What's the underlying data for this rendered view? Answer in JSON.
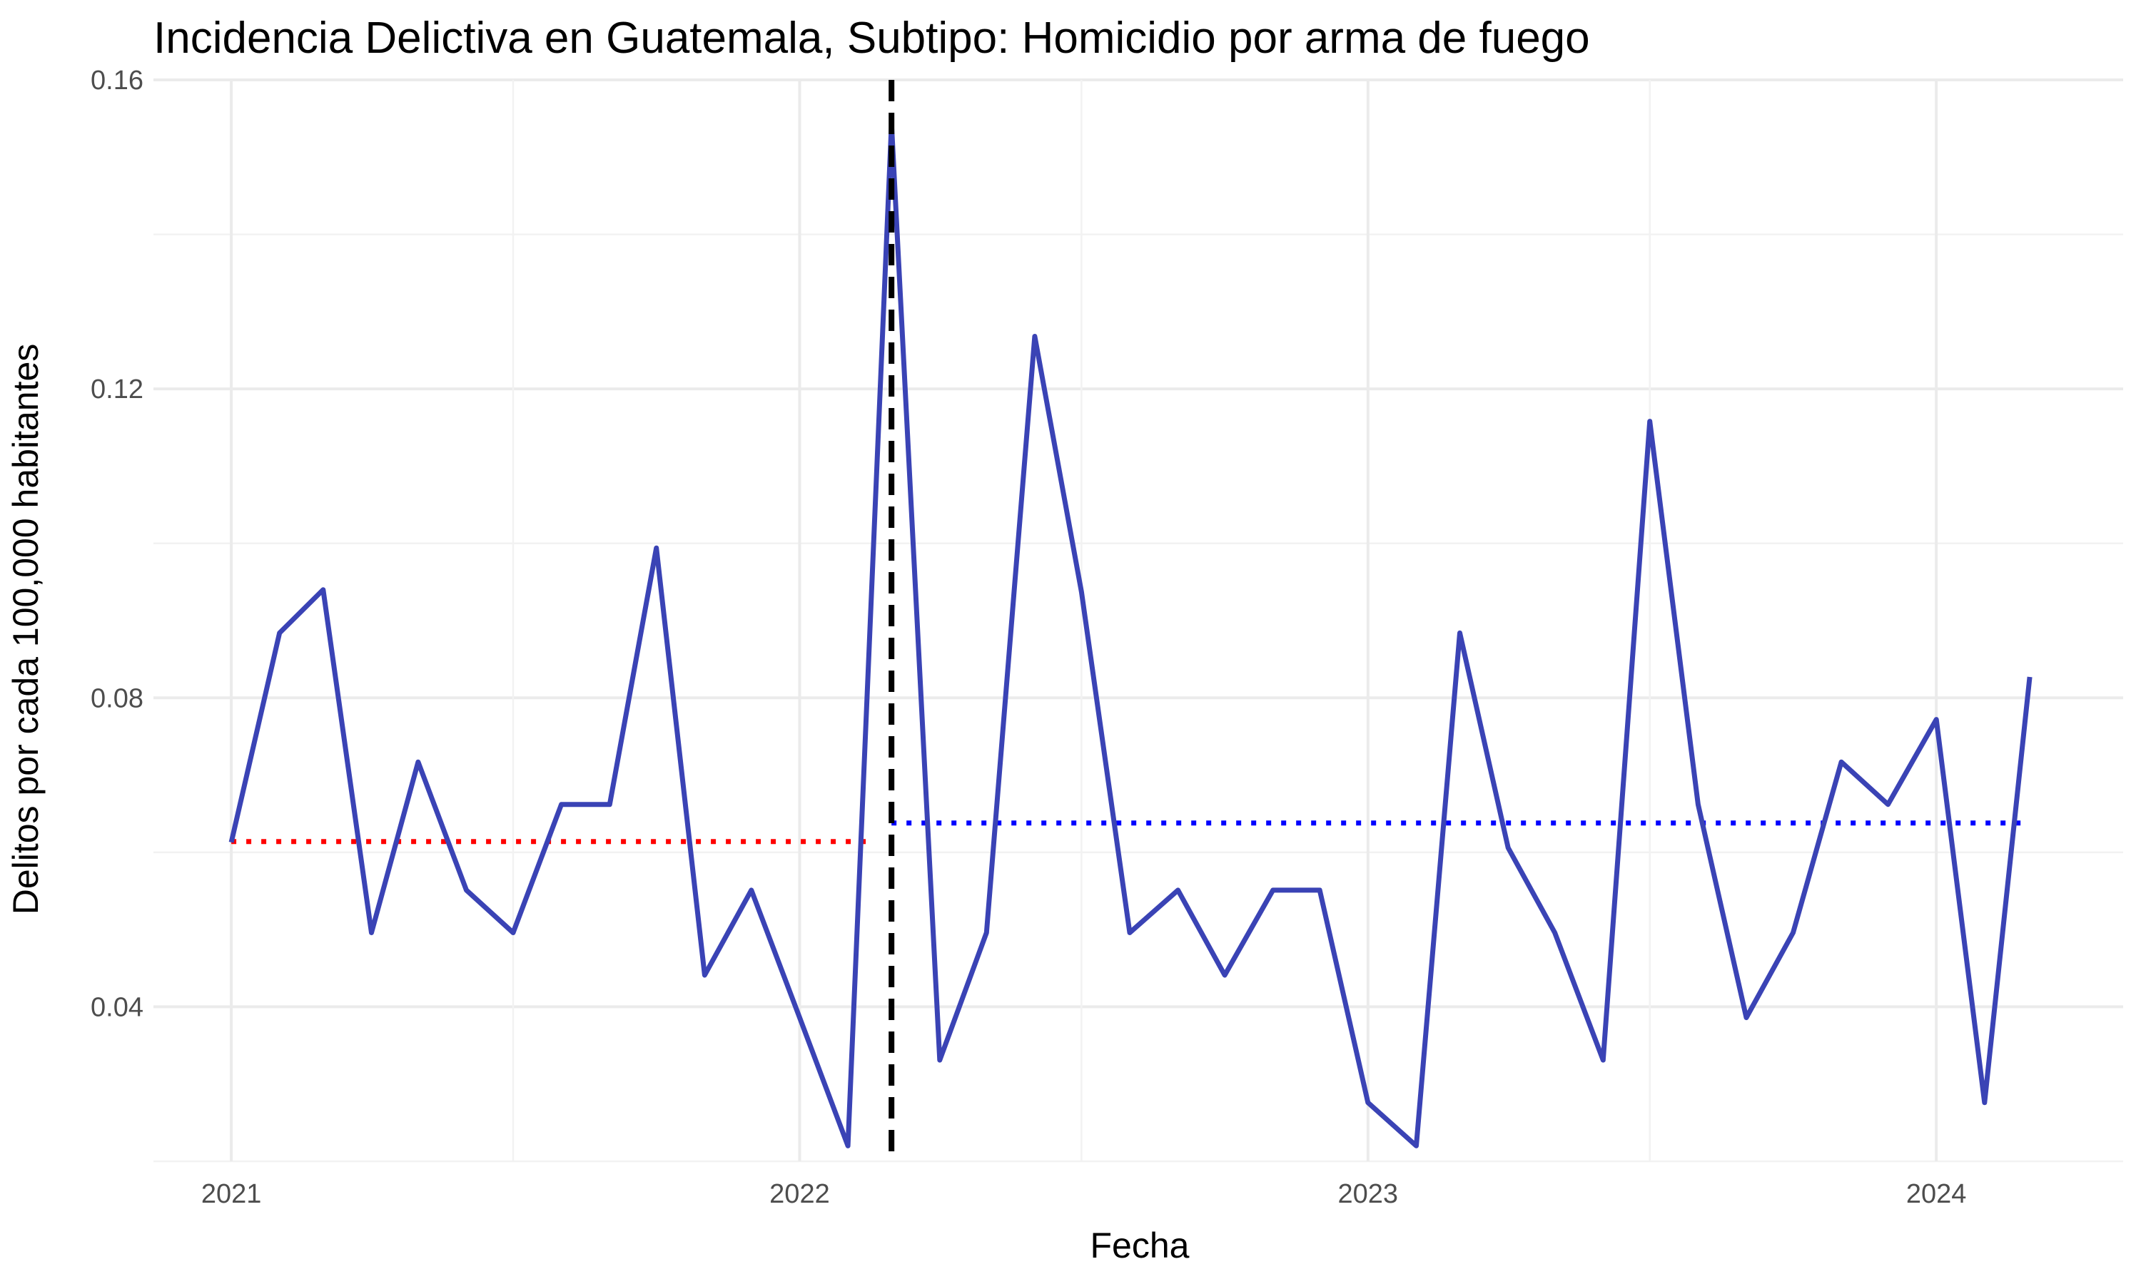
{
  "chart_data": {
    "type": "line",
    "title": "Incidencia Delictiva en Guatemala, Subtipo: Homicidio por arma de fuego",
    "xlabel": "Fecha",
    "ylabel": "Delitos por cada 100,000 habitantes",
    "x_ticks": [
      "2021",
      "2022",
      "2023",
      "2024"
    ],
    "y_ticks": [
      "0.04",
      "0.08",
      "0.12",
      "0.16"
    ],
    "y_tick_values": [
      0.04,
      0.08,
      0.12,
      0.16
    ],
    "ylim": [
      0.02,
      0.16
    ],
    "xlim": [
      "2020-11-12",
      "2024-04-30"
    ],
    "grid": true,
    "legend": "none",
    "series": [
      {
        "color": "#3a43b5",
        "x": [
          "2021-01-01",
          "2021-02-01",
          "2021-03-01",
          "2021-04-01",
          "2021-05-01",
          "2021-06-01",
          "2021-07-01",
          "2021-08-01",
          "2021-09-01",
          "2021-10-01",
          "2021-11-01",
          "2021-12-01",
          "2022-01-01",
          "2022-02-01",
          "2022-03-01",
          "2022-04-01",
          "2022-05-01",
          "2022-06-01",
          "2022-07-01",
          "2022-08-01",
          "2022-09-01",
          "2022-10-01",
          "2022-11-01",
          "2022-12-01",
          "2023-01-01",
          "2023-02-01",
          "2023-03-01",
          "2023-04-01",
          "2023-05-01",
          "2023-06-01",
          "2023-07-01",
          "2023-08-01",
          "2023-09-01",
          "2023-10-01",
          "2023-11-01",
          "2023-12-01",
          "2024-01-01",
          "2024-02-01",
          "2024-03-01"
        ],
        "values": [
          0.0613,
          0.0884,
          0.094,
          0.0496,
          0.0717,
          0.0551,
          0.0496,
          0.0662,
          0.0662,
          0.0994,
          0.0441,
          0.0551,
          0.0386,
          0.022,
          0.1543,
          0.0331,
          0.0496,
          0.1268,
          0.0937,
          0.0496,
          0.0551,
          0.0441,
          0.0551,
          0.0551,
          0.0276,
          0.022,
          0.0884,
          0.0606,
          0.0496,
          0.0331,
          0.1158,
          0.0662,
          0.0386,
          0.0496,
          0.0717,
          0.0662,
          0.0772,
          0.0276,
          0.0827
        ]
      }
    ],
    "reference_lines": [
      {
        "orientation": "horizontal",
        "style": "dotted",
        "color": "#ff0000",
        "value": 0.0614,
        "x_start": "2021-01-01",
        "x_end": "2022-02-15"
      },
      {
        "orientation": "horizontal",
        "style": "dotted",
        "color": "#0000ff",
        "value": 0.0638,
        "x_start": "2022-03-01",
        "x_end": "2024-03-01"
      },
      {
        "orientation": "vertical",
        "style": "dashed",
        "color": "#000000",
        "x": "2022-03-01"
      }
    ]
  }
}
